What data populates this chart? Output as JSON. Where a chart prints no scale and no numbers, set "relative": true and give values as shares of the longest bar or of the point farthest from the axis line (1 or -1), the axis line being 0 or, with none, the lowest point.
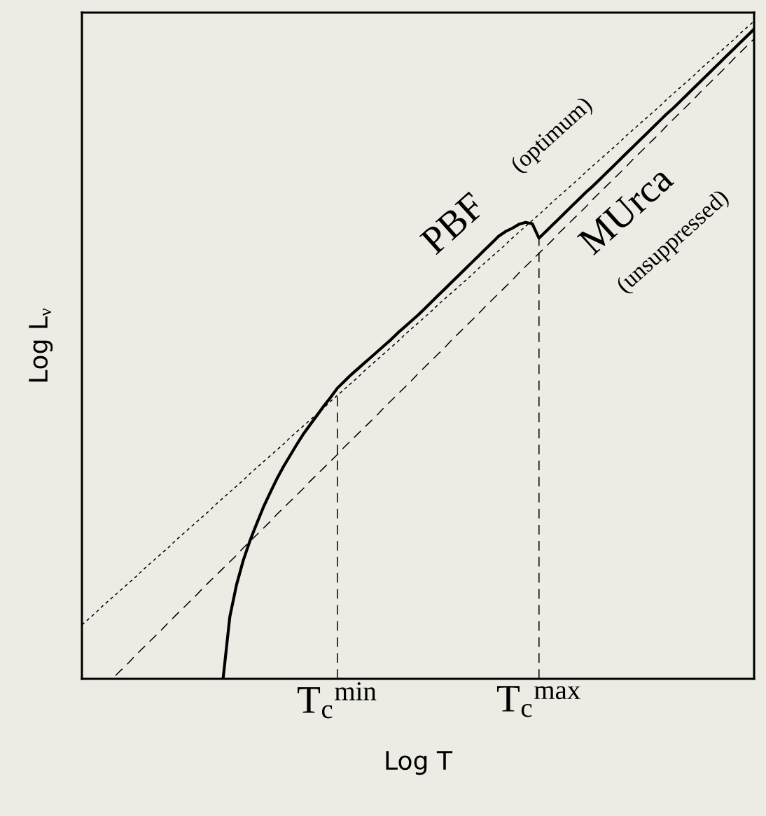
{
  "chart_data": {
    "type": "line",
    "relative": true,
    "ref_lines": [
      {
        "axis": "x",
        "value": "T$_{c}$$^{min}$",
        "color": "#000000",
        "line_style": "dashed"
      },
      {
        "axis": "x",
        "value": "T$_{c}$$^{max}$",
        "color": "#000000",
        "line_style": "dashed"
      }
    ],
    "xlabel": "Log T",
    "ylabel": "Log L$_{ν}$",
    "tick_labels": "x",
    "categories": [
      null,
      null,
      null,
      null,
      null,
      null,
      null,
      null,
      null,
      null,
      null,
      null,
      null,
      null,
      null,
      null,
      null,
      null,
      null,
      null,
      null,
      null,
      null,
      null,
      null,
      null,
      null,
      null,
      null,
      null,
      null,
      null,
      null,
      null,
      null,
      null,
      null,
      null,
      "T$_{c}$$^{min}$",
      null,
      null,
      null,
      null,
      null,
      null,
      null,
      null,
      null,
      null,
      null,
      null,
      null,
      null,
      null,
      null,
      null,
      null,
      null,
      null,
      null,
      null,
      null,
      null,
      null,
      null,
      null,
      null,
      null,
      "T$_{c}$$^{max}$",
      null,
      null,
      null,
      null,
      null,
      null,
      null,
      null,
      null,
      null,
      null,
      null,
      null,
      null,
      null,
      null,
      null,
      null,
      null,
      null,
      null,
      null,
      null,
      null,
      null,
      null,
      null,
      null,
      null,
      null,
      null,
      null
    ],
    "series": [
      {
        "color": "#000000",
        "line_style": "dotted",
        "values": [
          0.082,
          0.091,
          0.1,
          0.11,
          0.119,
          0.128,
          0.137,
          0.146,
          0.155,
          0.165,
          0.174,
          0.183,
          0.192,
          0.201,
          0.211,
          0.22,
          0.229,
          0.238,
          0.247,
          0.256,
          0.266,
          0.275,
          0.284,
          0.293,
          0.302,
          0.312,
          0.321,
          0.33,
          0.339,
          0.348,
          0.357,
          0.367,
          0.376,
          0.385,
          0.394,
          0.403,
          0.412,
          0.422,
          0.431,
          0.44,
          0.449,
          0.458,
          0.468,
          0.477,
          0.486,
          0.495,
          0.504,
          0.513,
          0.523,
          0.532,
          0.541,
          0.55,
          0.559,
          0.569,
          0.578,
          0.587,
          0.596,
          0.605,
          0.614,
          0.624,
          0.633,
          0.642,
          0.651,
          0.66,
          0.67,
          0.679,
          0.688,
          0.697,
          0.706,
          0.715,
          0.725,
          0.734,
          0.743,
          0.752,
          0.761,
          0.771,
          0.78,
          0.789,
          0.798,
          0.807,
          0.816,
          0.826,
          0.835,
          0.844,
          0.853,
          0.862,
          0.871,
          0.881,
          0.89,
          0.899,
          0.908,
          0.917,
          0.927,
          0.936,
          0.945,
          0.954,
          0.963,
          0.972,
          0.982,
          0.991,
          1.0
        ]
      },
      {
        "color": "#000000",
        "line_style": "dashed",
        "values": [
          null,
          null,
          null,
          null,
          null,
          0.005,
          0.015,
          0.025,
          0.036,
          0.046,
          0.056,
          0.066,
          0.076,
          0.087,
          0.097,
          0.107,
          0.117,
          0.127,
          0.138,
          0.148,
          0.158,
          0.168,
          0.178,
          0.188,
          0.199,
          0.209,
          0.219,
          0.229,
          0.239,
          0.25,
          0.26,
          0.27,
          0.28,
          0.29,
          0.301,
          0.311,
          0.321,
          0.331,
          0.341,
          0.352,
          0.362,
          0.372,
          0.382,
          0.392,
          0.402,
          0.413,
          0.423,
          0.433,
          0.443,
          0.453,
          0.464,
          0.474,
          0.484,
          0.494,
          0.504,
          0.515,
          0.525,
          0.535,
          0.545,
          0.555,
          0.566,
          0.576,
          0.586,
          0.596,
          0.606,
          0.617,
          0.627,
          0.637,
          0.647,
          0.657,
          0.667,
          0.678,
          0.688,
          0.698,
          0.708,
          0.718,
          0.729,
          0.739,
          0.749,
          0.759,
          0.769,
          0.779,
          0.79,
          0.8,
          0.81,
          0.82,
          0.83,
          0.841,
          0.851,
          0.861,
          0.871,
          0.881,
          0.892,
          0.902,
          0.912,
          0.922,
          0.932,
          0.943,
          0.953,
          0.963,
          0.973
        ]
      },
      {
        "color": "#000000",
        "line_style": "solid",
        "values": [
          null,
          null,
          null,
          null,
          null,
          null,
          null,
          null,
          null,
          null,
          null,
          null,
          null,
          null,
          null,
          null,
          null,
          null,
          null,
          null,
          null,
          0.0,
          0.094,
          0.143,
          0.18,
          0.21,
          0.236,
          0.261,
          0.283,
          0.304,
          0.323,
          0.34,
          0.357,
          0.373,
          0.387,
          0.401,
          0.415,
          0.428,
          0.442,
          0.452,
          0.462,
          0.471,
          0.48,
          0.489,
          0.498,
          0.507,
          0.516,
          0.526,
          0.535,
          0.544,
          0.553,
          0.563,
          0.573,
          0.583,
          0.593,
          0.603,
          0.613,
          0.623,
          0.633,
          0.643,
          0.653,
          0.663,
          0.673,
          0.68,
          0.685,
          0.691,
          0.694,
          0.692,
          0.67,
          0.68,
          0.69,
          0.7,
          0.71,
          0.72,
          0.73,
          0.74,
          0.749,
          0.759,
          0.769,
          0.779,
          0.789,
          0.799,
          0.809,
          0.819,
          0.829,
          0.839,
          0.849,
          0.859,
          0.868,
          0.878,
          0.888,
          0.898,
          0.908,
          0.918,
          0.928,
          0.938,
          0.948,
          0.958,
          0.968,
          0.978,
          0.988
        ]
      }
    ],
    "annotations": [
      "PBF",
      "(optimum)",
      "MUrca",
      "(unsuppressed)"
    ]
  }
}
